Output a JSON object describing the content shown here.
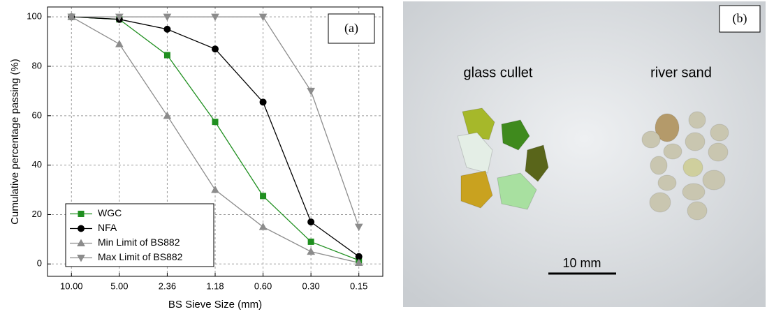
{
  "chart_data": {
    "type": "line",
    "title": "(a)",
    "x_label": "BS Sieve Size (mm)",
    "y_label": "Cumulative percentage passing (%)",
    "categories": [
      "10.00",
      "5.00",
      "2.36",
      "1.18",
      "0.60",
      "0.30",
      "0.15"
    ],
    "series": [
      {
        "name": "WGC",
        "color": "#1f8f1f",
        "marker": "square",
        "values": [
          100,
          99,
          84.5,
          57.5,
          27.5,
          9,
          1.5
        ]
      },
      {
        "name": "NFA",
        "color": "#000000",
        "marker": "circle",
        "values": [
          100,
          99,
          95,
          87,
          65.5,
          17,
          3
        ]
      },
      {
        "name": "Min Limit of BS882",
        "color": "#8c8c8c",
        "marker": "triangle-up",
        "values": [
          100,
          89,
          60,
          30,
          15,
          5,
          0.5
        ]
      },
      {
        "name": "Max Limit of BS882",
        "color": "#8c8c8c",
        "marker": "triangle-down",
        "values": [
          100,
          100,
          100,
          100,
          100,
          70,
          15
        ]
      }
    ],
    "ylim": [
      -5,
      104
    ],
    "yticks": [
      0,
      20,
      40,
      60,
      80,
      100
    ],
    "grid": true,
    "legend": "lower-left"
  },
  "photo": {
    "label": "(b)",
    "labels": [
      "glass cullet",
      "river sand"
    ],
    "scale_bar": "10 mm"
  }
}
